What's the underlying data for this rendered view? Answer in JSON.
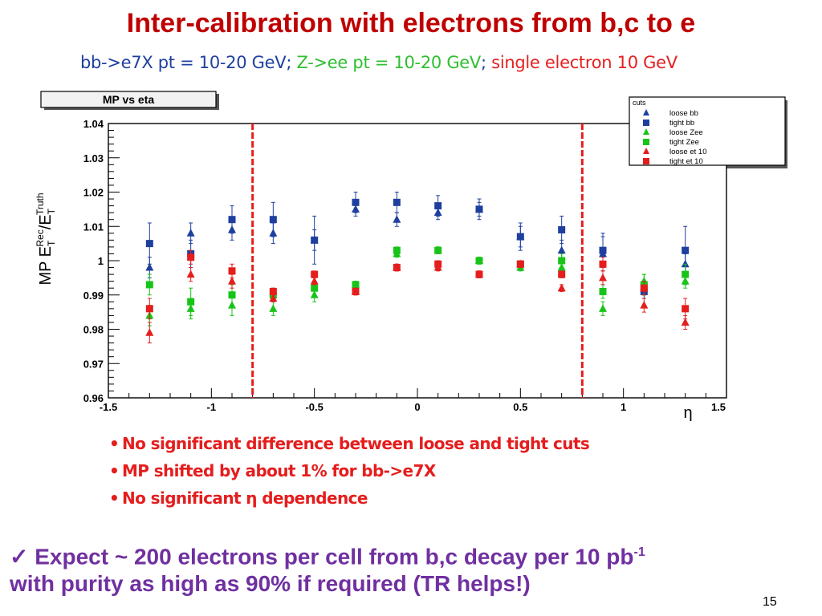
{
  "slide": {
    "title": "Inter-calibration with electrons from b,c to e",
    "subtitle_parts": [
      {
        "text": "bb->e7X pt = 10-20 GeV;",
        "color": "#1f3f9f"
      },
      {
        "text": "Z->ee pt = 10-20 GeV",
        "color": "#2fbf2f"
      },
      {
        "text": ";",
        "color": "#1f3f9f"
      },
      {
        "text": "single electron 10 GeV",
        "color": "#e52020"
      }
    ],
    "bullets": [
      "No significant difference between loose and tight cuts",
      "MP shifted by about 1% for bb->e7X",
      "No significant η dependence"
    ],
    "conclusion": {
      "check": "✓",
      "line1": "Expect ~ 200 electrons per cell from b,c decay per 10 pb",
      "line1_sup": "-1",
      "line2": "with purity as high as 90% if required (TR helps!)"
    },
    "page_number": "15"
  },
  "chart_data": {
    "type": "scatter",
    "title": "MP vs eta",
    "xlabel": "η",
    "ylabel": "MP E_T^Rec/E_T^Truth",
    "xlim": [
      -1.5,
      1.5
    ],
    "ylim": [
      0.96,
      1.04
    ],
    "x_ticks": [
      "-1.5",
      "-1",
      "-0.5",
      "0",
      "0.5",
      "1",
      "1.5"
    ],
    "y_ticks": [
      "0.96",
      "0.97",
      "0.98",
      "0.99",
      "1",
      "1.01",
      "1.02",
      "1.03",
      "1.04"
    ],
    "vertical_lines": [
      -0.8,
      0.8
    ],
    "legend_title": "cuts",
    "legend_position": "top-right",
    "colors": {
      "bb": "#1f3f9f",
      "zee": "#18c418",
      "et10": "#e51d1d",
      "divider": "#e51d1d"
    },
    "series": [
      {
        "name": "loose bb",
        "marker": "triangle",
        "color": "#1f3f9f",
        "x": [
          -1.3,
          -1.1,
          -0.9,
          -0.7,
          -0.5,
          -0.3,
          -0.1,
          0.1,
          0.3,
          0.5,
          0.7,
          0.9,
          1.1,
          1.3
        ],
        "y": [
          0.998,
          1.008,
          1.009,
          1.008,
          1.006,
          1.015,
          1.012,
          1.014,
          1.015,
          1.007,
          1.003,
          1.002,
          0.992,
          0.999
        ],
        "err": [
          0.003,
          0.003,
          0.003,
          0.003,
          0.003,
          0.002,
          0.002,
          0.002,
          0.002,
          0.003,
          0.003,
          0.005,
          0.002,
          0.003
        ]
      },
      {
        "name": "tight bb",
        "marker": "square",
        "color": "#1f3f9f",
        "x": [
          -1.3,
          -1.1,
          -0.9,
          -0.7,
          -0.5,
          -0.3,
          -0.1,
          0.1,
          0.3,
          0.5,
          0.7,
          0.9,
          1.1,
          1.3
        ],
        "y": [
          1.005,
          1.002,
          1.012,
          1.012,
          1.006,
          1.017,
          1.017,
          1.016,
          1.015,
          1.007,
          1.009,
          1.003,
          0.991,
          1.003
        ],
        "err": [
          0.006,
          0.004,
          0.004,
          0.005,
          0.007,
          0.003,
          0.003,
          0.003,
          0.003,
          0.004,
          0.004,
          0.005,
          0.002,
          0.007
        ]
      },
      {
        "name": "loose Zee",
        "marker": "triangle",
        "color": "#18c418",
        "x": [
          -1.3,
          -1.1,
          -0.9,
          -0.7,
          -0.5,
          -0.3,
          -0.1,
          0.1,
          0.3,
          0.5,
          0.7,
          0.9,
          1.1,
          1.3
        ],
        "y": [
          0.984,
          0.986,
          0.987,
          0.986,
          0.99,
          0.993,
          1.002,
          1.003,
          1.0,
          0.998,
          0.998,
          0.986,
          0.994,
          0.994
        ],
        "err": [
          0.003,
          0.003,
          0.003,
          0.002,
          0.002,
          0.001,
          0.001,
          0.001,
          0.001,
          0.001,
          0.002,
          0.002,
          0.002,
          0.002
        ]
      },
      {
        "name": "tight Zee",
        "marker": "square",
        "color": "#18c418",
        "x": [
          -1.3,
          -1.1,
          -0.9,
          -0.7,
          -0.5,
          -0.3,
          -0.1,
          0.1,
          0.3,
          0.5,
          0.7,
          0.9,
          1.1,
          1.3
        ],
        "y": [
          0.993,
          0.988,
          0.99,
          0.99,
          0.992,
          0.993,
          1.003,
          1.003,
          1.0,
          0.999,
          1.0,
          0.991,
          0.993,
          0.996
        ],
        "err": [
          0.003,
          0.004,
          0.003,
          0.002,
          0.002,
          0.001,
          0.001,
          0.001,
          0.001,
          0.001,
          0.002,
          0.002,
          0.003,
          0.003
        ]
      },
      {
        "name": "loose et 10",
        "marker": "triangle",
        "color": "#e51d1d",
        "x": [
          -1.3,
          -1.1,
          -0.9,
          -0.7,
          -0.5,
          -0.3,
          -0.1,
          0.1,
          0.3,
          0.5,
          0.7,
          0.9,
          1.1,
          1.3
        ],
        "y": [
          0.979,
          0.996,
          0.994,
          0.989,
          0.994,
          0.991,
          0.998,
          0.998,
          0.996,
          0.999,
          0.992,
          0.995,
          0.987,
          0.982
        ],
        "err": [
          0.003,
          0.002,
          0.002,
          0.001,
          0.001,
          0.001,
          0.001,
          0.001,
          0.001,
          0.001,
          0.001,
          0.002,
          0.002,
          0.002
        ]
      },
      {
        "name": "tight et 10",
        "marker": "square",
        "color": "#e51d1d",
        "x": [
          -1.3,
          -1.1,
          -0.9,
          -0.7,
          -0.5,
          -0.3,
          -0.1,
          0.1,
          0.3,
          0.5,
          0.7,
          0.9,
          1.1,
          1.3
        ],
        "y": [
          0.986,
          1.001,
          0.997,
          0.991,
          0.996,
          0.991,
          0.998,
          0.999,
          0.996,
          0.999,
          0.996,
          0.999,
          0.992,
          0.986
        ],
        "err": [
          0.003,
          0.002,
          0.002,
          0.001,
          0.001,
          0.001,
          0.001,
          0.001,
          0.001,
          0.001,
          0.001,
          0.002,
          0.002,
          0.003
        ]
      }
    ]
  }
}
